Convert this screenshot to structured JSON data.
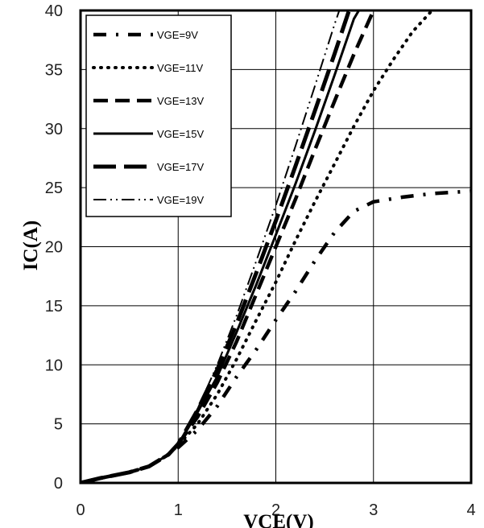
{
  "chart_data": {
    "type": "line",
    "title": "",
    "xlabel": "VCE(V)",
    "ylabel": "IC(A)",
    "xlim": [
      0,
      4
    ],
    "ylim": [
      0,
      40
    ],
    "x_ticks": [
      "0",
      "1",
      "2",
      "3",
      "4"
    ],
    "y_ticks": [
      "0",
      "5",
      "10",
      "15",
      "20",
      "25",
      "30",
      "35",
      "40"
    ],
    "grid": true,
    "legend_position": "top-left",
    "series": [
      {
        "name": "VGE=9V",
        "style": "dash-dot",
        "color": "#000000",
        "points": [
          [
            0,
            0
          ],
          [
            0.2,
            0.4
          ],
          [
            0.5,
            0.9
          ],
          [
            0.7,
            1.4
          ],
          [
            0.9,
            2.4
          ],
          [
            1.0,
            3.0
          ],
          [
            1.2,
            4.5
          ],
          [
            1.4,
            6.5
          ],
          [
            1.6,
            9.0
          ],
          [
            1.8,
            11.3
          ],
          [
            2.0,
            13.8
          ],
          [
            2.2,
            16.2
          ],
          [
            2.4,
            18.8
          ],
          [
            2.6,
            21.2
          ],
          [
            2.8,
            23.0
          ],
          [
            3.0,
            23.8
          ],
          [
            3.3,
            24.2
          ],
          [
            3.6,
            24.5
          ],
          [
            4.0,
            24.7
          ]
        ]
      },
      {
        "name": "VGE=11V",
        "style": "dot",
        "color": "#000000",
        "points": [
          [
            0,
            0
          ],
          [
            0.2,
            0.4
          ],
          [
            0.5,
            0.9
          ],
          [
            0.7,
            1.4
          ],
          [
            0.9,
            2.4
          ],
          [
            1.0,
            3.2
          ],
          [
            1.2,
            5.0
          ],
          [
            1.4,
            7.5
          ],
          [
            1.6,
            10.5
          ],
          [
            1.8,
            13.8
          ],
          [
            2.0,
            17.0
          ],
          [
            2.2,
            20.5
          ],
          [
            2.4,
            23.8
          ],
          [
            2.6,
            27.0
          ],
          [
            2.8,
            30.2
          ],
          [
            3.0,
            33.2
          ],
          [
            3.2,
            35.8
          ],
          [
            3.4,
            38.2
          ],
          [
            3.6,
            40.0
          ]
        ]
      },
      {
        "name": "VGE=13V",
        "style": "dash",
        "color": "#000000",
        "points": [
          [
            0,
            0
          ],
          [
            0.2,
            0.4
          ],
          [
            0.5,
            0.9
          ],
          [
            0.7,
            1.4
          ],
          [
            0.9,
            2.4
          ],
          [
            1.0,
            3.3
          ],
          [
            1.2,
            5.6
          ],
          [
            1.4,
            8.5
          ],
          [
            1.6,
            12.0
          ],
          [
            1.8,
            16.0
          ],
          [
            2.0,
            20.0
          ],
          [
            2.2,
            24.0
          ],
          [
            2.4,
            28.2
          ],
          [
            2.6,
            32.3
          ],
          [
            2.8,
            36.3
          ],
          [
            3.0,
            40.0
          ]
        ]
      },
      {
        "name": "VGE=15V",
        "style": "solid",
        "color": "#000000",
        "points": [
          [
            0,
            0
          ],
          [
            0.2,
            0.4
          ],
          [
            0.5,
            0.9
          ],
          [
            0.7,
            1.4
          ],
          [
            0.9,
            2.4
          ],
          [
            1.0,
            3.3
          ],
          [
            1.2,
            6.0
          ],
          [
            1.4,
            9.0
          ],
          [
            1.6,
            12.8
          ],
          [
            1.8,
            16.8
          ],
          [
            2.0,
            21.0
          ],
          [
            2.2,
            25.3
          ],
          [
            2.4,
            29.8
          ],
          [
            2.6,
            34.5
          ],
          [
            2.8,
            39.3
          ],
          [
            2.85,
            40.0
          ]
        ]
      },
      {
        "name": "VGE=17V",
        "style": "long-dash",
        "color": "#000000",
        "points": [
          [
            0,
            0
          ],
          [
            0.2,
            0.4
          ],
          [
            0.5,
            0.9
          ],
          [
            0.7,
            1.4
          ],
          [
            0.9,
            2.4
          ],
          [
            1.0,
            3.3
          ],
          [
            1.2,
            6.2
          ],
          [
            1.4,
            9.6
          ],
          [
            1.6,
            13.5
          ],
          [
            1.8,
            17.8
          ],
          [
            2.0,
            22.2
          ],
          [
            2.2,
            26.8
          ],
          [
            2.4,
            31.5
          ],
          [
            2.6,
            36.3
          ],
          [
            2.75,
            40.0
          ]
        ]
      },
      {
        "name": "VGE=19V",
        "style": "dash-dot-dot",
        "color": "#000000",
        "points": [
          [
            0,
            0
          ],
          [
            0.2,
            0.4
          ],
          [
            0.5,
            0.9
          ],
          [
            0.7,
            1.4
          ],
          [
            0.9,
            2.4
          ],
          [
            1.0,
            3.3
          ],
          [
            1.2,
            6.3
          ],
          [
            1.4,
            10.0
          ],
          [
            1.6,
            14.2
          ],
          [
            1.8,
            18.8
          ],
          [
            2.0,
            23.5
          ],
          [
            2.2,
            28.5
          ],
          [
            2.4,
            33.6
          ],
          [
            2.6,
            38.8
          ],
          [
            2.65,
            40.0
          ]
        ]
      }
    ]
  }
}
